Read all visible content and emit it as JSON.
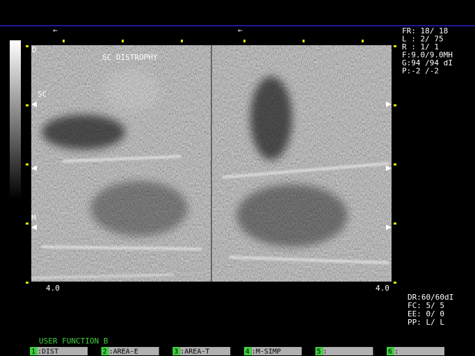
{
  "header": {
    "title": "SC DISTROPHY"
  },
  "image_labels": {
    "depth_top": "D",
    "region": "SC",
    "marker": "M",
    "depth_left": "4.0",
    "depth_right": "4.0",
    "arrow": "←"
  },
  "params_top": [
    "FR: 18/ 18",
    "L : 2/ 75",
    "R : 1/ 1",
    "F:9.0/9.0MH",
    "G:94 /94 dI",
    "P:-2 /-2"
  ],
  "params_bottom": [
    "DR:60/60dI",
    "FC: 5/ 5",
    "EE: 0/ 0",
    "PP: L/ L"
  ],
  "user_function": {
    "title": "USER FUNCTION B",
    "keys": [
      {
        "key": "1",
        "label": ":DIST"
      },
      {
        "key": "2",
        "label": ":AREA-E"
      },
      {
        "key": "3",
        "label": ":AREA-T"
      },
      {
        "key": "4",
        "label": ":M-SIMP"
      },
      {
        "key": "5",
        "label": ":"
      },
      {
        "key": "6",
        "label": ":"
      }
    ]
  }
}
